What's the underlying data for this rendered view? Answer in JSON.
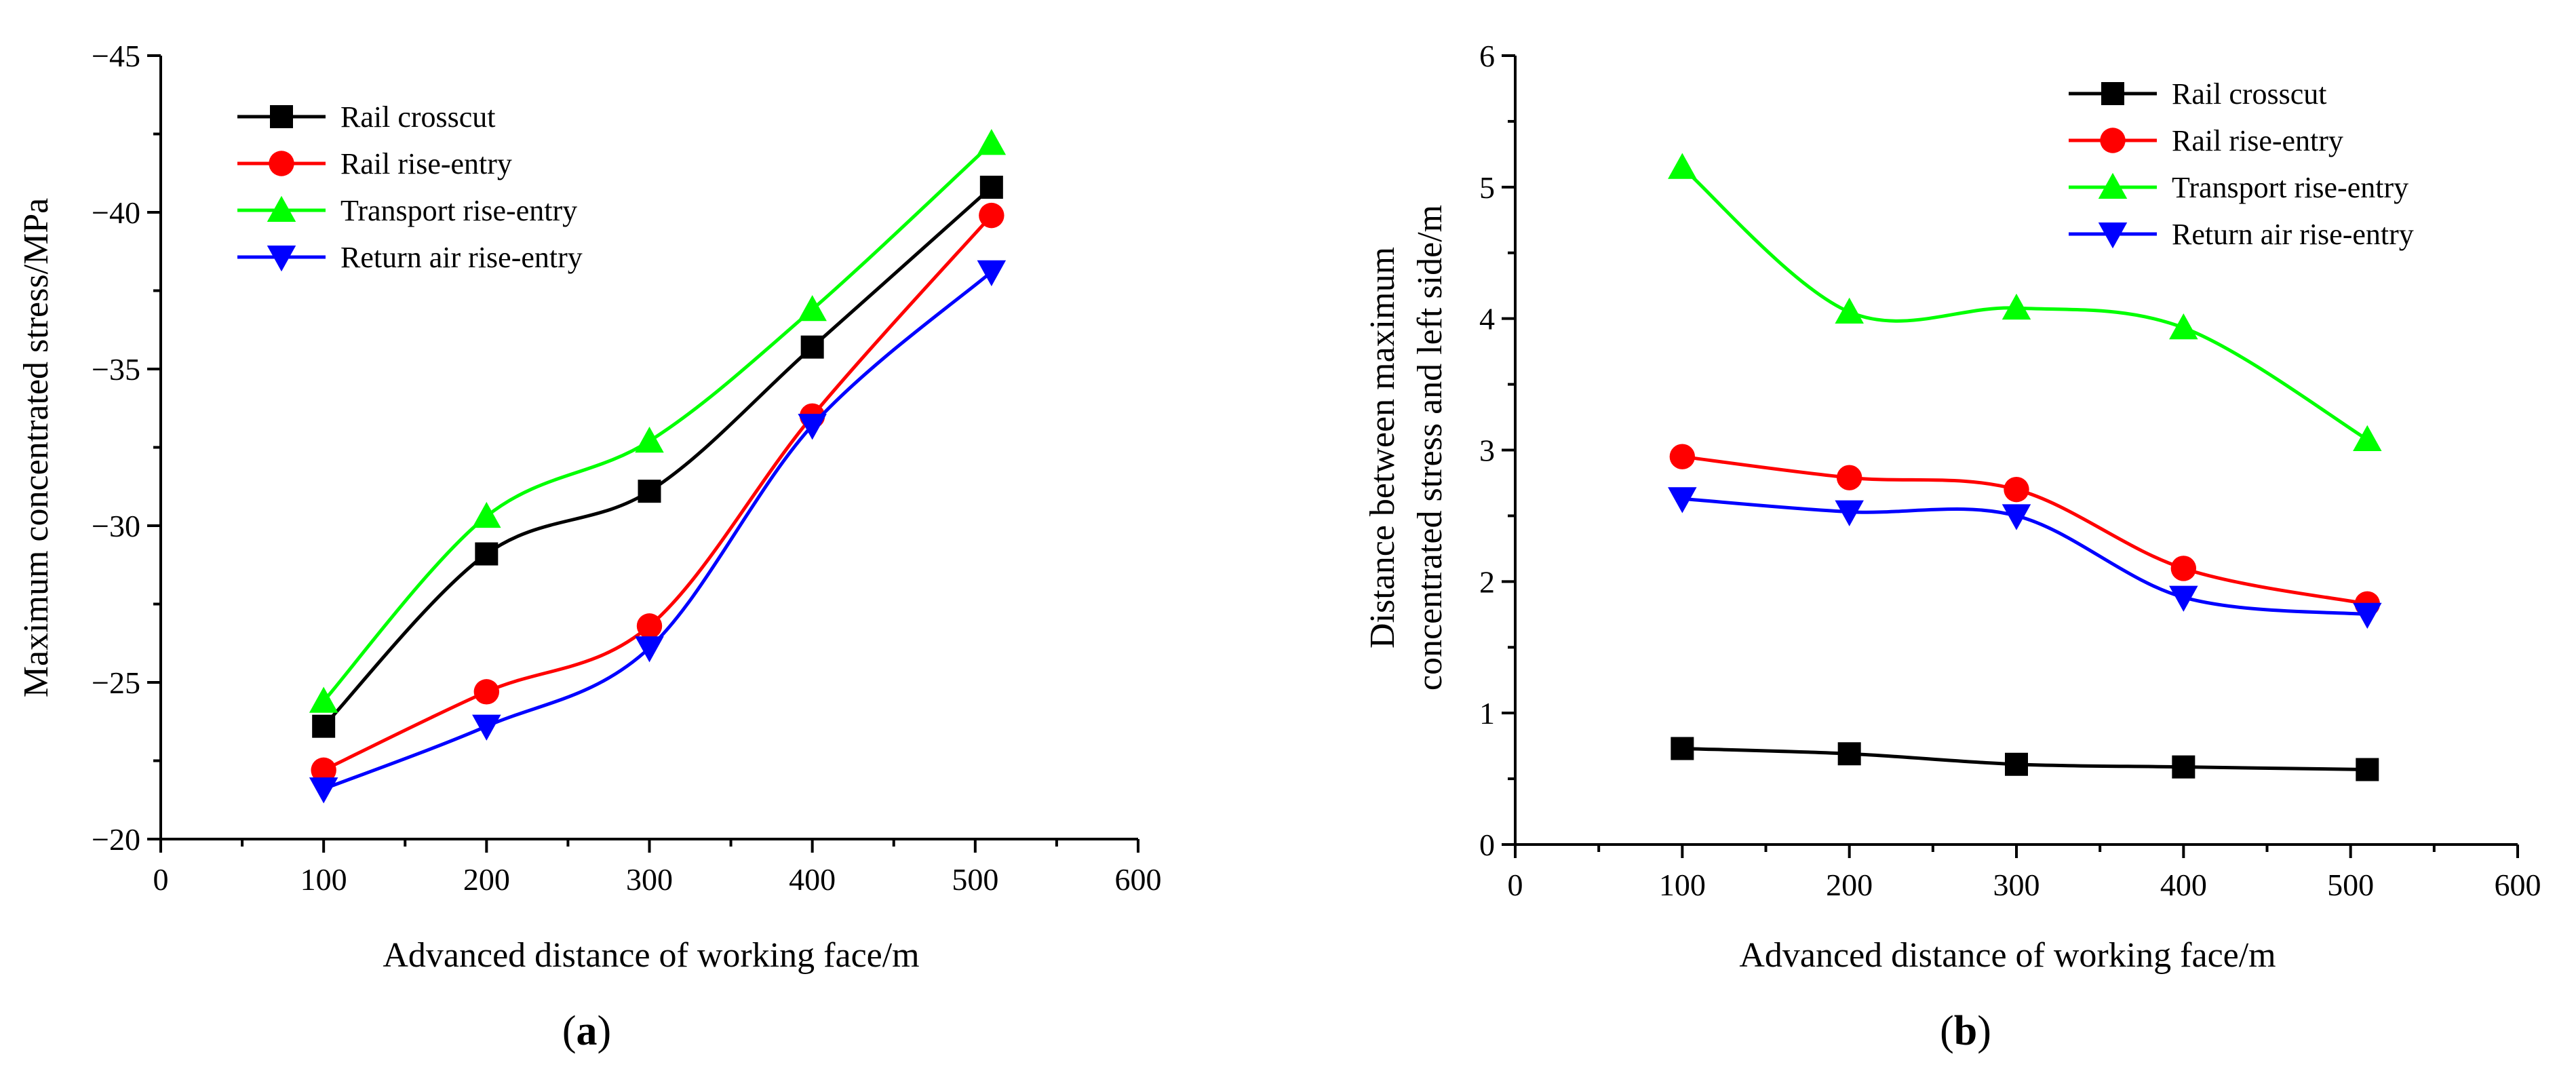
{
  "figure": {
    "colors": {
      "black": "#000000",
      "red": "#ff0000",
      "green": "#00ff00",
      "blue": "#0000ff"
    }
  },
  "chart_data": [
    {
      "type": "line",
      "panel_caption": "a",
      "title": "",
      "xlabel": "Advanced distance of working face/m",
      "ylabel": "Maximum concentrated stress/MPa",
      "xlim": [
        0,
        600
      ],
      "ylim": [
        -20,
        -45
      ],
      "y_inverted": true,
      "x_ticks": [
        0,
        100,
        200,
        300,
        400,
        500,
        600
      ],
      "y_ticks": [
        -20,
        -25,
        -30,
        -35,
        -40,
        -45
      ],
      "x_tick_labels": [
        "0",
        "100",
        "200",
        "300",
        "400",
        "500",
        "600"
      ],
      "y_tick_labels": [
        "−20",
        "−25",
        "−30",
        "−35",
        "−40",
        "−45"
      ],
      "legend_position": "top-left",
      "x": [
        100,
        200,
        300,
        400,
        510
      ],
      "series": [
        {
          "name": "Rail crosscut",
          "marker": "square",
          "color": "#000000",
          "values": [
            -23.6,
            -29.1,
            -31.1,
            -35.7,
            -40.8
          ]
        },
        {
          "name": "Rail rise-entry",
          "marker": "circle",
          "color": "#ff0000",
          "values": [
            -22.2,
            -24.7,
            -26.8,
            -33.5,
            -39.9
          ]
        },
        {
          "name": "Transport rise-entry",
          "marker": "triangle-up",
          "color": "#00ff00",
          "values": [
            -24.4,
            -30.3,
            -32.7,
            -36.9,
            -42.2
          ]
        },
        {
          "name": "Return air rise-entry",
          "marker": "triangle-down",
          "color": "#0000ff",
          "values": [
            -21.6,
            -23.6,
            -26.1,
            -33.2,
            -38.1
          ]
        }
      ],
      "legend_labels": [
        "Rail crosscut",
        "Rail rise-entry",
        " Transport rise-entry",
        " Return air rise-entry"
      ]
    },
    {
      "type": "line",
      "panel_caption": "b",
      "title": "",
      "xlabel": "Advanced distance of working face/m",
      "ylabel_line1": "Distance between maximum",
      "ylabel_line2": "concentrated stress and left side/m",
      "xlim": [
        0,
        600
      ],
      "ylim": [
        0,
        6
      ],
      "y_inverted": false,
      "x_ticks": [
        0,
        100,
        200,
        300,
        400,
        500,
        600
      ],
      "y_ticks": [
        0,
        1,
        2,
        3,
        4,
        5,
        6
      ],
      "x_tick_labels": [
        "0",
        "100",
        "200",
        "300",
        "400",
        "500",
        "600"
      ],
      "y_tick_labels": [
        "0",
        "1",
        "2",
        "3",
        "4",
        "5",
        "6"
      ],
      "legend_position": "top-right",
      "x": [
        100,
        200,
        300,
        400,
        510
      ],
      "series": [
        {
          "name": "Rail crosscut",
          "marker": "square",
          "color": "#000000",
          "values": [
            0.73,
            0.69,
            0.61,
            0.59,
            0.57
          ]
        },
        {
          "name": "Rail rise-entry",
          "marker": "circle",
          "color": "#ff0000",
          "values": [
            2.95,
            2.79,
            2.7,
            2.1,
            1.83
          ]
        },
        {
          "name": "Transport rise-entry",
          "marker": "triangle-up",
          "color": "#00ff00",
          "values": [
            5.15,
            4.05,
            4.08,
            3.93,
            3.08
          ]
        },
        {
          "name": "Return air rise-entry",
          "marker": "triangle-down",
          "color": "#0000ff",
          "values": [
            2.63,
            2.53,
            2.5,
            1.88,
            1.75
          ]
        }
      ],
      "legend_labels": [
        "Rail crosscut",
        "Rail rise-entry",
        "Transport rise-entry",
        "Return air rise-entry"
      ]
    }
  ],
  "captions": {
    "a": {
      "open": "(",
      "letter": "a",
      "close": ")"
    },
    "b": {
      "open": "(",
      "letter": "b",
      "close": ")"
    }
  }
}
